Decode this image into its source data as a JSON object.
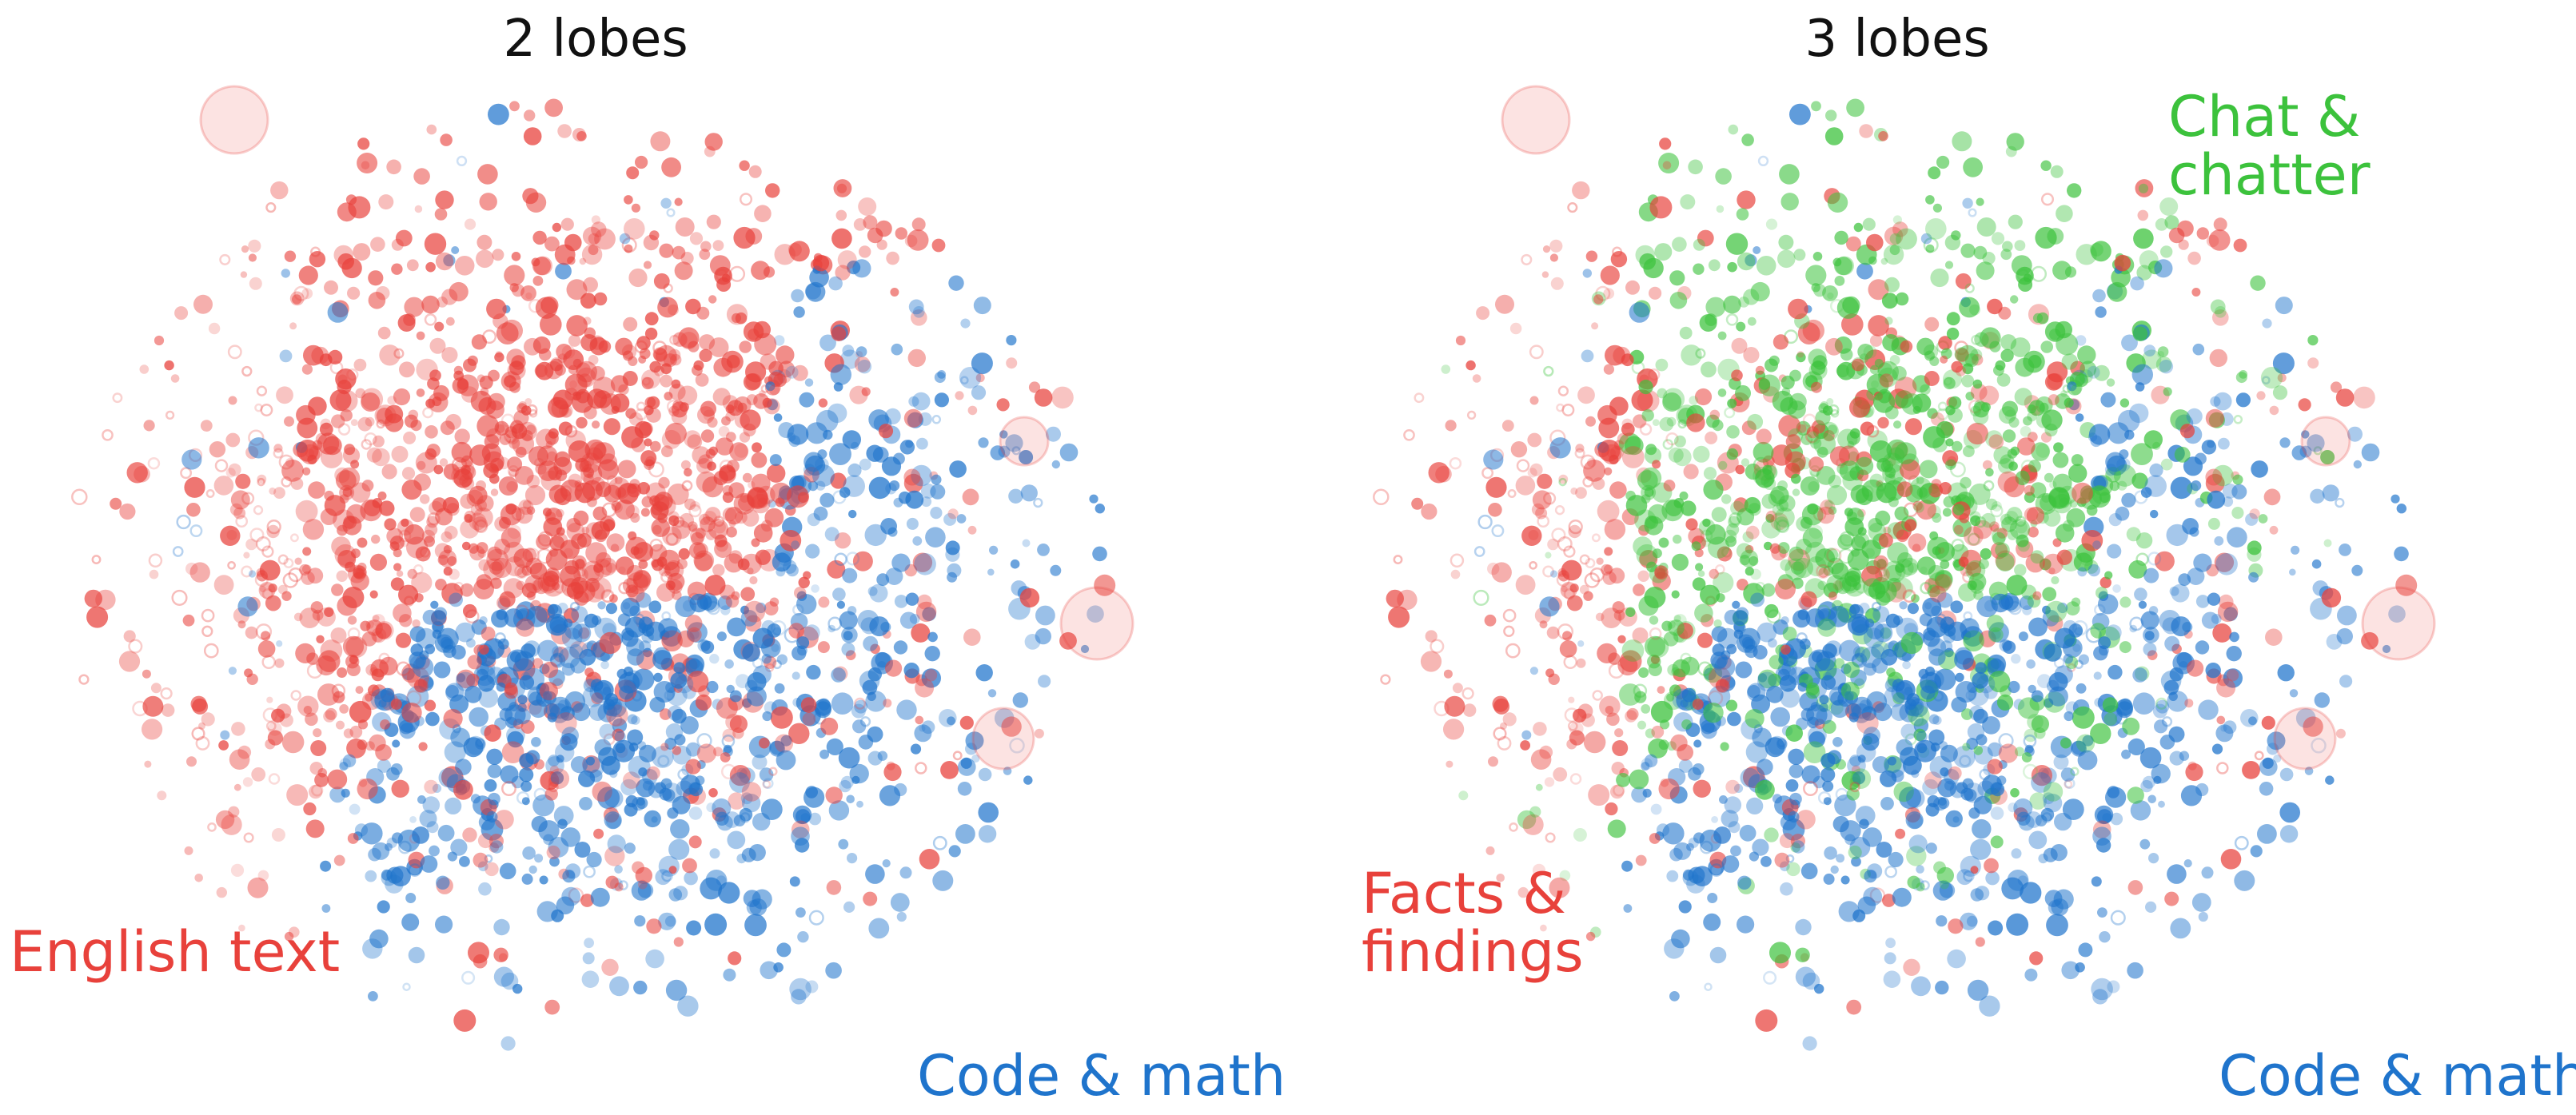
{
  "chart_data": [
    {
      "type": "scatter",
      "title": "2 lobes",
      "xlabel": "",
      "ylabel": "",
      "grid": false,
      "axes_visible": false,
      "series": [
        {
          "name": "English text",
          "color": "#e8413b"
        },
        {
          "name": "Code & math",
          "color": "#1f74cc"
        }
      ],
      "annotations": [
        {
          "text": "English text",
          "series": "English text",
          "placement": "bottom-left"
        },
        {
          "text": "Code & math",
          "series": "Code & math",
          "placement": "bottom-right"
        }
      ]
    },
    {
      "type": "scatter",
      "title": "3 lobes",
      "xlabel": "",
      "ylabel": "",
      "grid": false,
      "axes_visible": false,
      "series": [
        {
          "name": "Facts & findings",
          "color": "#e8413b"
        },
        {
          "name": "Chat & chatter",
          "color": "#3cc23c"
        },
        {
          "name": "Code & math",
          "color": "#1f74cc"
        }
      ],
      "annotations": [
        {
          "text": "Chat &\nchatter",
          "series": "Chat & chatter",
          "placement": "top-right"
        },
        {
          "text": "Facts &\nfindings",
          "series": "Facts & findings",
          "placement": "bottom-left"
        },
        {
          "text": "Code & math",
          "series": "Code & math",
          "placement": "bottom-right"
        }
      ]
    }
  ],
  "labels": {
    "left_title": "2 lobes",
    "right_title": "3 lobes",
    "left_english": "English text",
    "left_code": "Code & math",
    "right_chat_line1": "Chat &",
    "right_chat_line2": "chatter",
    "right_facts_line1": "Facts &",
    "right_facts_line2": "findings",
    "right_code": "Code & math"
  },
  "colors": {
    "red": "#e8413b",
    "blue": "#1f74cc",
    "green": "#3cc23c"
  }
}
